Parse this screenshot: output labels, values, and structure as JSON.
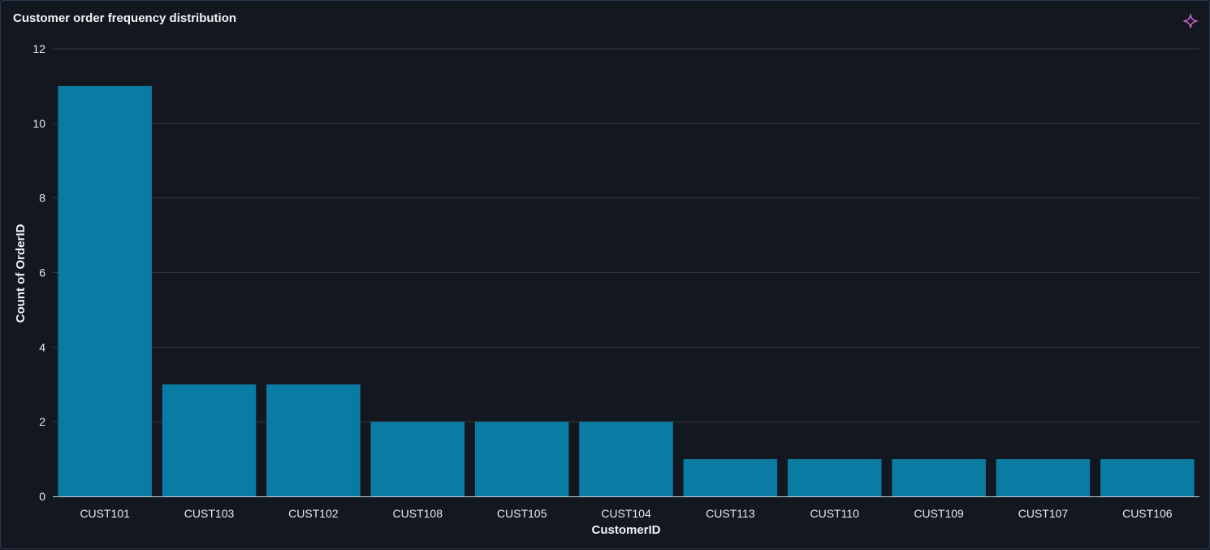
{
  "panel": {
    "title": "Customer order frequency distribution",
    "action_icon": "sparkle-icon"
  },
  "colors": {
    "background": "#13171f",
    "bar": "#0a7ca3",
    "grid": "#353a40",
    "axis_line": "#c9ced6",
    "text": "#e8eaee",
    "sparkle_gradient": [
      "#b06af0",
      "#e85aa0"
    ]
  },
  "chart_data": {
    "type": "bar",
    "title": "",
    "xlabel": "CustomerID",
    "ylabel": "Count of OrderID",
    "ylim": [
      0,
      12
    ],
    "yticks": [
      0,
      2,
      4,
      6,
      8,
      10,
      12
    ],
    "grid": true,
    "categories": [
      "CUST101",
      "CUST103",
      "CUST102",
      "CUST108",
      "CUST105",
      "CUST104",
      "CUST113",
      "CUST110",
      "CUST109",
      "CUST107",
      "CUST106"
    ],
    "values": [
      11,
      3,
      3,
      2,
      2,
      2,
      1,
      1,
      1,
      1,
      1
    ]
  }
}
